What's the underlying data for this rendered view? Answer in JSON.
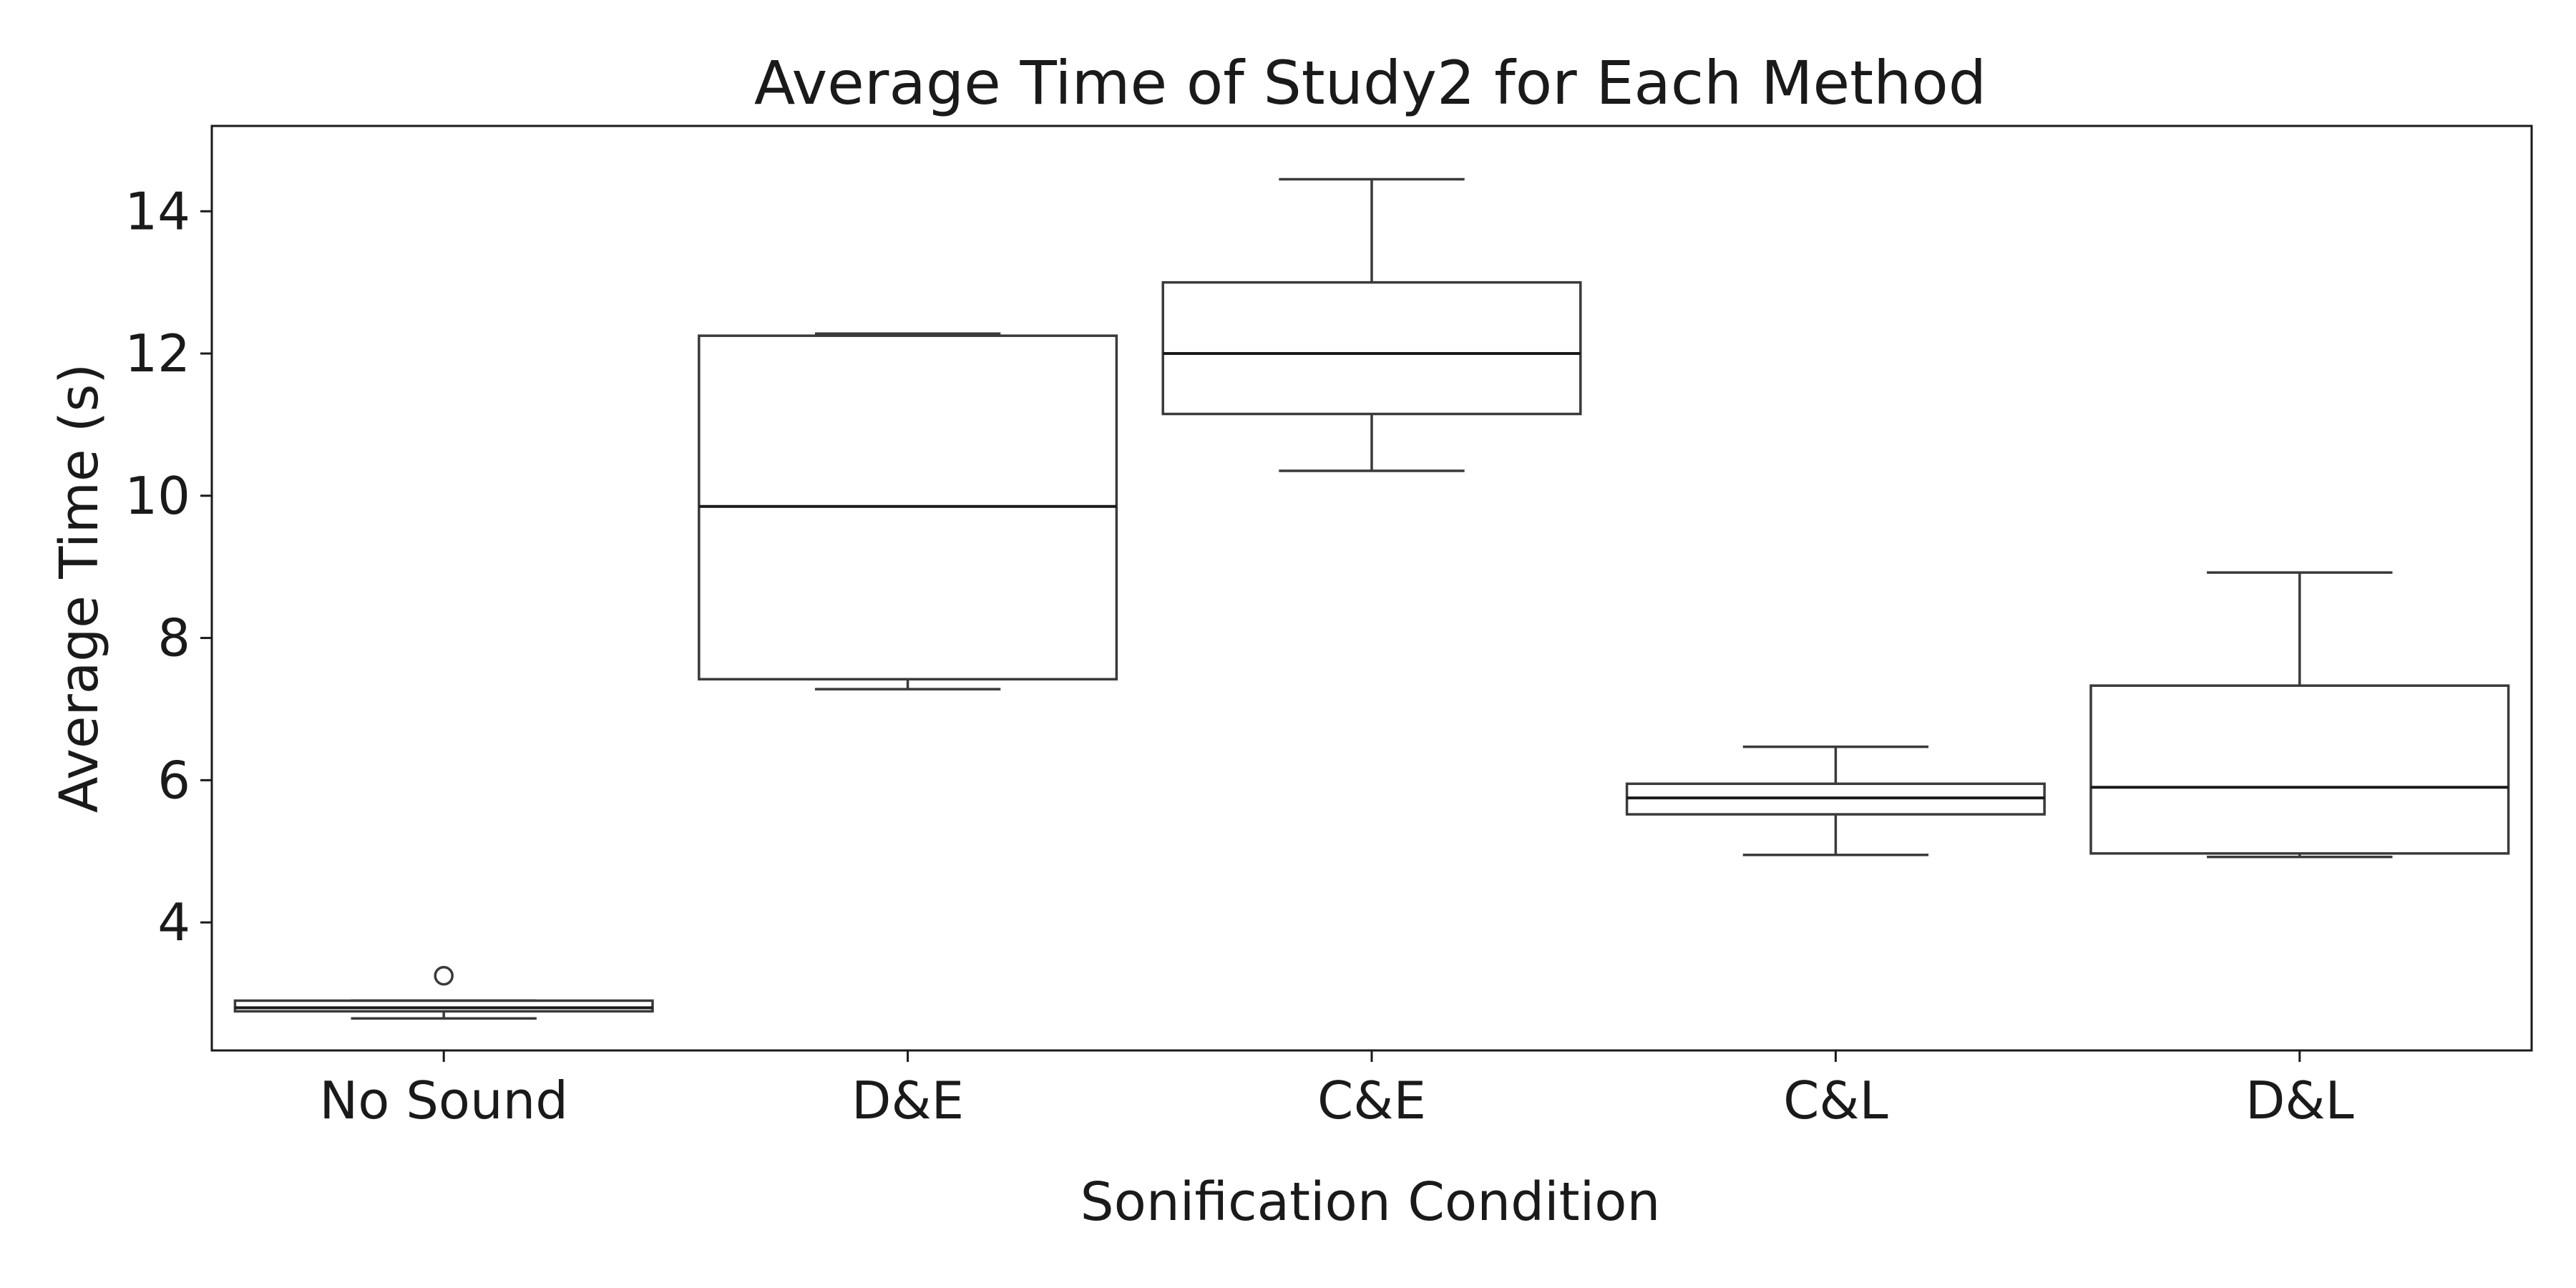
{
  "chart_data": {
    "type": "box",
    "title": "Average Time of Study2 for Each Method",
    "xlabel": "Sonification Condition",
    "ylabel": "Average Time (s)",
    "ylim": [
      2.2,
      15.2
    ],
    "yticks": [
      4,
      6,
      8,
      10,
      12,
      14
    ],
    "grid": false,
    "categories": [
      "No Sound",
      "D&E",
      "C&E",
      "C&L",
      "D&L"
    ],
    "boxes": [
      {
        "whislo": 2.65,
        "q1": 2.75,
        "med": 2.8,
        "q3": 2.9,
        "whishi": 2.9,
        "fliers": [
          3.25
        ]
      },
      {
        "whislo": 7.28,
        "q1": 7.42,
        "med": 9.85,
        "q3": 12.25,
        "whishi": 12.28,
        "fliers": []
      },
      {
        "whislo": 10.35,
        "q1": 11.15,
        "med": 12.0,
        "q3": 13.0,
        "whishi": 14.45,
        "fliers": []
      },
      {
        "whislo": 4.95,
        "q1": 5.52,
        "med": 5.75,
        "q3": 5.95,
        "whishi": 6.47,
        "fliers": []
      },
      {
        "whislo": 4.92,
        "q1": 4.97,
        "med": 5.9,
        "q3": 7.33,
        "whishi": 8.92,
        "fliers": []
      }
    ]
  }
}
